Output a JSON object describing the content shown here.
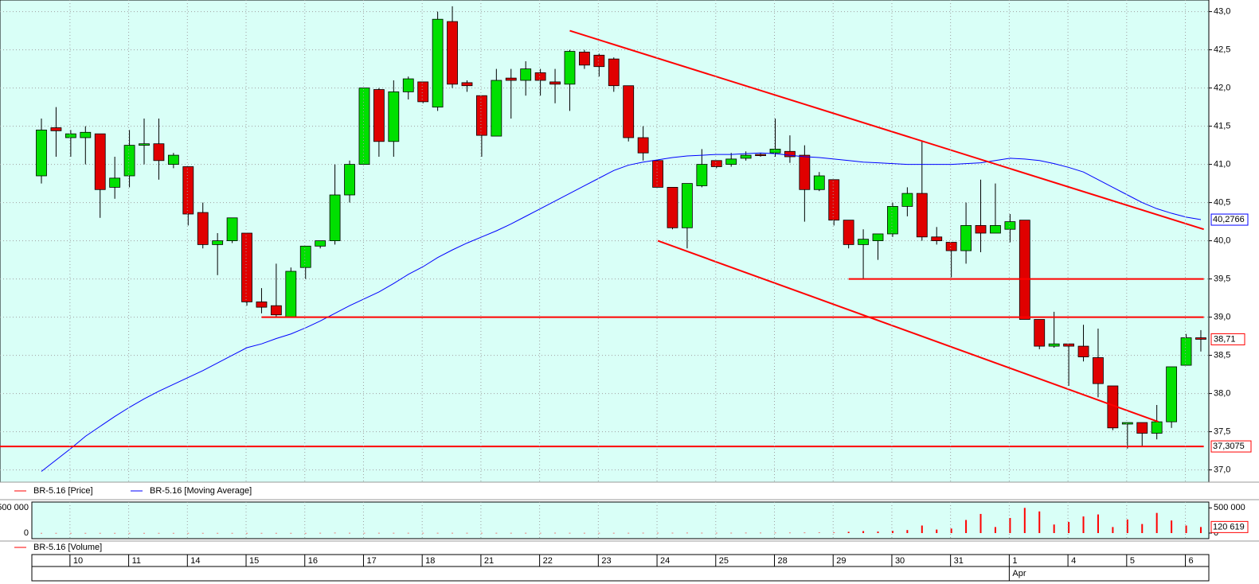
{
  "chart_data": [
    {
      "type": "candlestick",
      "ylim": [
        36.85,
        43.1
      ],
      "yticks": [
        {
          "value": 37,
          "label": "37,0"
        },
        {
          "value": 37.5,
          "label": "37,5"
        },
        {
          "value": 38,
          "label": "38,0"
        },
        {
          "value": 38.5,
          "label": "38,5"
        },
        {
          "value": 39,
          "label": "39,0"
        },
        {
          "value": 39.5,
          "label": "39,5"
        },
        {
          "value": 40,
          "label": "40,0"
        },
        {
          "value": 40.5,
          "label": "40,5"
        },
        {
          "value": 41,
          "label": "41,0"
        },
        {
          "value": 41.5,
          "label": "41,5"
        },
        {
          "value": 42,
          "label": "42,0"
        },
        {
          "value": 42.5,
          "label": "42,5"
        },
        {
          "value": 43,
          "label": "43,0"
        }
      ],
      "grid": true,
      "series": [
        {
          "name": "BR-5.16 [Price]",
          "color": "#ff0000",
          "up_color": "#00e000",
          "down_color": "#e00000",
          "last_label": "38,71",
          "open": [
            40.85,
            41.48,
            41.35,
            41.35,
            41.4,
            40.7,
            40.85,
            41.25,
            41.27,
            41.0,
            40.97,
            40.37,
            39.95,
            40.0,
            40.1,
            39.2,
            39.15,
            39.0,
            39.65,
            39.93,
            40.0,
            40.6,
            41.0,
            41.98,
            41.3,
            41.95,
            42.08,
            41.75,
            42.87,
            42.07,
            41.9,
            41.37,
            42.13,
            42.1,
            42.2,
            42.08,
            42.05,
            42.47,
            42.43,
            42.38,
            42.03,
            41.35,
            41.05,
            40.7,
            40.17,
            40.72,
            41.05,
            41.0,
            41.08,
            41.13,
            41.15,
            41.17,
            41.12,
            40.67,
            40.8,
            40.27,
            39.95,
            40.0,
            40.09,
            40.45,
            40.62,
            40.05,
            39.98,
            39.87,
            40.2,
            40.1,
            40.15,
            40.27,
            38.97,
            38.62,
            38.65,
            38.62,
            38.47,
            38.1,
            37.6,
            37.62,
            37.48,
            37.63,
            38.37,
            38.73
          ],
          "high": [
            41.6,
            41.75,
            41.45,
            41.5,
            41.4,
            41.1,
            41.45,
            41.6,
            41.6,
            41.15,
            40.97,
            40.5,
            40.1,
            40.3,
            40.1,
            39.38,
            39.7,
            39.65,
            39.93,
            40.0,
            41.0,
            41.05,
            42.0,
            42.0,
            42.1,
            42.15,
            42.08,
            43.0,
            43.07,
            42.1,
            41.9,
            42.25,
            42.25,
            42.35,
            42.25,
            42.25,
            42.5,
            42.5,
            42.45,
            42.4,
            42.03,
            41.5,
            41.05,
            40.7,
            40.75,
            41.2,
            41.05,
            41.15,
            41.17,
            41.15,
            41.6,
            41.38,
            41.25,
            40.9,
            40.8,
            40.27,
            40.15,
            40.09,
            40.5,
            40.7,
            41.3,
            40.18,
            39.98,
            40.5,
            40.8,
            40.75,
            40.35,
            40.27,
            38.97,
            39.07,
            38.65,
            38.9,
            38.85,
            38.1,
            37.62,
            37.62,
            37.85,
            38.35,
            38.78,
            38.83
          ],
          "low": [
            40.75,
            41.1,
            41.1,
            41.0,
            40.3,
            40.55,
            40.7,
            41.0,
            40.8,
            40.95,
            40.2,
            39.9,
            39.55,
            39.97,
            39.15,
            39.05,
            39.0,
            39.0,
            39.5,
            39.9,
            39.95,
            40.5,
            41.0,
            41.1,
            41.1,
            41.85,
            41.8,
            41.7,
            42.0,
            41.95,
            41.1,
            41.37,
            41.6,
            41.9,
            41.9,
            41.8,
            41.7,
            42.25,
            42.15,
            41.95,
            41.3,
            41.05,
            40.7,
            40.15,
            39.9,
            40.7,
            40.95,
            40.97,
            41.05,
            41.1,
            41.1,
            41.02,
            40.25,
            40.65,
            40.2,
            39.9,
            39.5,
            39.75,
            40.05,
            40.32,
            40.0,
            39.95,
            39.52,
            39.7,
            39.85,
            40.1,
            39.98,
            38.97,
            38.58,
            38.6,
            38.1,
            38.42,
            37.95,
            37.52,
            37.28,
            37.3,
            37.4,
            37.55,
            38.37,
            38.55
          ],
          "close": [
            41.45,
            41.44,
            41.4,
            41.42,
            40.67,
            40.82,
            41.25,
            41.27,
            41.05,
            41.12,
            40.35,
            39.95,
            40.0,
            40.3,
            39.2,
            39.13,
            39.03,
            39.6,
            39.93,
            40.0,
            40.6,
            41.0,
            42.0,
            41.3,
            41.95,
            42.12,
            41.82,
            42.9,
            42.05,
            42.03,
            41.38,
            42.1,
            42.1,
            42.25,
            42.1,
            42.05,
            42.48,
            42.3,
            42.28,
            42.03,
            41.35,
            41.15,
            40.7,
            40.17,
            40.75,
            41.0,
            40.97,
            41.07,
            41.12,
            41.12,
            41.2,
            41.1,
            40.67,
            40.85,
            40.27,
            39.95,
            40.02,
            40.09,
            40.45,
            40.62,
            40.05,
            40.0,
            39.87,
            40.2,
            40.1,
            40.2,
            40.25,
            38.97,
            38.62,
            38.65,
            38.62,
            38.48,
            38.13,
            37.55,
            37.62,
            37.48,
            37.63,
            38.35,
            38.73,
            38.71
          ]
        },
        {
          "name": "BR-5.16 [Moving Average]",
          "color": "#0000ff",
          "last_label": "40,2766",
          "values": [
            36.98,
            37.13,
            37.28,
            37.44,
            37.57,
            37.7,
            37.82,
            37.93,
            38.03,
            38.12,
            38.21,
            38.3,
            38.4,
            38.5,
            38.6,
            38.65,
            38.72,
            38.78,
            38.86,
            38.95,
            39.05,
            39.15,
            39.24,
            39.33,
            39.44,
            39.56,
            39.66,
            39.78,
            39.88,
            39.97,
            40.05,
            40.13,
            40.22,
            40.32,
            40.42,
            40.52,
            40.62,
            40.72,
            40.82,
            40.92,
            40.99,
            41.03,
            41.06,
            41.09,
            41.11,
            41.12,
            41.13,
            41.13,
            41.14,
            41.15,
            41.14,
            41.12,
            41.1,
            41.09,
            41.07,
            41.05,
            41.03,
            41.02,
            41.01,
            41.0,
            41.0,
            41.0,
            41.0,
            41.01,
            41.02,
            41.05,
            41.08,
            41.07,
            41.05,
            41.01,
            40.96,
            40.9,
            40.8,
            40.7,
            40.6,
            40.5,
            40.42,
            40.36,
            40.31,
            40.2766
          ]
        }
      ],
      "lines": [
        {
          "x": [
            36,
            79.2
          ],
          "y": [
            42.75,
            40.15
          ],
          "color": "#ff0000"
        },
        {
          "x": [
            42,
            76.1
          ],
          "y": [
            40.0,
            37.63
          ],
          "color": "#ff0000"
        },
        {
          "x": [
            55,
            79.2
          ],
          "y": [
            39.5,
            39.5
          ],
          "color": "#ff0000"
        },
        {
          "x": [
            15,
            79.2
          ],
          "y": [
            39.0,
            39.0
          ],
          "color": "#ff0000"
        },
        {
          "x": [
            -2.9,
            79.2
          ],
          "y": [
            37.3075,
            37.3075
          ],
          "color": "#ff0000",
          "label": "37,3075"
        }
      ]
    },
    {
      "type": "bar",
      "ylim": [
        0,
        600000
      ],
      "yticks": [
        0,
        {
          "value": 500000,
          "label": "500 000"
        }
      ],
      "series": [
        {
          "name": "BR-5.16 [Volume]",
          "color": "#ff0000",
          "last_label": "120 619",
          "values": [
            2000,
            2000,
            2000,
            2000,
            2000,
            2000,
            2000,
            2000,
            2000,
            2000,
            2000,
            2000,
            2000,
            2000,
            2000,
            2000,
            2000,
            2000,
            2000,
            3000,
            5000,
            3000,
            3000,
            3000,
            3000,
            3000,
            3000,
            3000,
            3000,
            3000,
            3000,
            3000,
            3000,
            3000,
            3000,
            4000,
            3000,
            3000,
            3000,
            3000,
            3000,
            4000,
            4000,
            4000,
            5000,
            4000,
            4000,
            4000,
            5000,
            5000,
            6000,
            6000,
            7000,
            8000,
            10000,
            25000,
            40000,
            30000,
            45000,
            60000,
            150000,
            70000,
            90000,
            260000,
            380000,
            120000,
            300000,
            500000,
            430000,
            170000,
            220000,
            330000,
            370000,
            120000,
            270000,
            180000,
            400000,
            250000,
            150000,
            120619
          ]
        }
      ],
      "x_labels": [
        "10",
        "11",
        "14",
        "15",
        "16",
        "17",
        "18",
        "21",
        "22",
        "23",
        "24",
        "25",
        "28",
        "29",
        "30",
        "31",
        "1",
        "4",
        "5",
        "6"
      ],
      "month_labels": [
        null,
        null,
        null,
        null,
        null,
        null,
        null,
        null,
        null,
        null,
        null,
        null,
        null,
        null,
        null,
        null,
        "Apr",
        null,
        null,
        null
      ]
    }
  ]
}
